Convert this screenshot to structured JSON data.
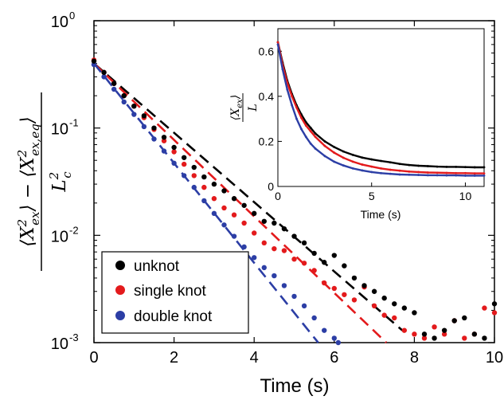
{
  "chart_data": [
    {
      "type": "scatter",
      "title": "",
      "xlabel": "Time (s)",
      "ylabel_parts": {
        "num_a": "⟨X",
        "num_a_sub": "ex",
        "num_a_sup": "2",
        "num_mid": "⟩ − ⟨X",
        "num_b_sub": "ex,eq",
        "num_b_sup": "2",
        "num_end": "⟩",
        "den": "L",
        "den_sub": "c",
        "den_sup": "2"
      },
      "xlim": [
        0,
        10
      ],
      "ylim": [
        0.001,
        1
      ],
      "y_scale": "log",
      "x_ticks": [
        0,
        2,
        4,
        6,
        8,
        10
      ],
      "x_tick_labels": [
        "0",
        "2",
        "4",
        "6",
        "8",
        "10"
      ],
      "y_ticks": [
        1,
        0.1,
        0.01,
        0.001
      ],
      "y_tick_labels": [
        {
          "base": "10",
          "exp": "0"
        },
        {
          "base": "10",
          "exp": "-1"
        },
        {
          "base": "10",
          "exp": "-2"
        },
        {
          "base": "10",
          "exp": "-3"
        }
      ],
      "grid": false,
      "legend_position": "bottom-left",
      "series": [
        {
          "name": "unknot",
          "color": "#000000",
          "marker": "dot",
          "x": [
            0.0,
            0.25,
            0.5,
            0.75,
            1.0,
            1.25,
            1.5,
            1.75,
            2.0,
            2.25,
            2.5,
            2.75,
            3.0,
            3.25,
            3.5,
            3.75,
            4.0,
            4.25,
            4.5,
            4.75,
            5.0,
            5.25,
            5.5,
            5.75,
            6.0,
            6.25,
            6.5,
            6.75,
            7.0,
            7.25,
            7.5,
            7.75,
            8.0,
            8.25,
            8.5,
            8.75,
            9.0,
            9.25,
            9.5,
            9.75,
            10.0
          ],
          "y": [
            0.42,
            0.33,
            0.26,
            0.2,
            0.16,
            0.13,
            0.1,
            0.082,
            0.066,
            0.053,
            0.043,
            0.035,
            0.03,
            0.026,
            0.022,
            0.019,
            0.016,
            0.0135,
            0.013,
            0.0115,
            0.0098,
            0.0085,
            0.0068,
            0.0056,
            0.0065,
            0.0052,
            0.004,
            0.0034,
            0.003,
            0.0026,
            0.0023,
            0.0021,
            0.0019,
            0.0012,
            0.0011,
            0.0013,
            0.0016,
            0.0017,
            0.0012,
            0.0011,
            0.0023
          ]
        },
        {
          "name": "single knot",
          "color": "#e31a1c",
          "marker": "dot",
          "x": [
            0.0,
            0.25,
            0.5,
            0.75,
            1.0,
            1.25,
            1.5,
            1.75,
            2.0,
            2.25,
            2.5,
            2.75,
            3.0,
            3.25,
            3.5,
            3.75,
            4.0,
            4.25,
            4.5,
            4.75,
            5.0,
            5.25,
            5.5,
            5.75,
            6.0,
            6.25,
            6.5,
            6.75,
            7.0,
            7.25,
            7.5,
            7.75,
            8.0,
            8.25,
            8.5,
            8.75,
            9.0,
            9.25,
            9.5,
            9.75,
            10.0
          ],
          "y": [
            0.43,
            0.33,
            0.26,
            0.2,
            0.16,
            0.125,
            0.097,
            0.076,
            0.06,
            0.046,
            0.036,
            0.028,
            0.022,
            0.018,
            0.0155,
            0.013,
            0.0105,
            0.0085,
            0.0075,
            0.0072,
            0.006,
            0.0055,
            0.0047,
            0.0036,
            0.0032,
            0.0028,
            0.0025,
            0.0033,
            0.0022,
            0.0018,
            0.0017,
            0.0013,
            0.0012,
            0.0011,
            0.0014,
            0.0012,
            0.0016,
            0.0011,
            0.0012,
            0.0021,
            0.0019
          ]
        },
        {
          "name": "double knot",
          "color": "#2c3ea5",
          "marker": "dot",
          "x": [
            0.0,
            0.25,
            0.5,
            0.75,
            1.0,
            1.25,
            1.5,
            1.75,
            2.0,
            2.25,
            2.5,
            2.75,
            3.0,
            3.25,
            3.5,
            3.75,
            4.0,
            4.25,
            4.5,
            4.75,
            5.0,
            5.25,
            5.5,
            5.75,
            6.0,
            6.1
          ],
          "y": [
            0.39,
            0.3,
            0.23,
            0.175,
            0.134,
            0.103,
            0.079,
            0.061,
            0.047,
            0.036,
            0.028,
            0.021,
            0.016,
            0.0125,
            0.0098,
            0.0078,
            0.0062,
            0.005,
            0.0042,
            0.0034,
            0.0027,
            0.0022,
            0.0017,
            0.0013,
            0.0011,
            0.001
          ]
        }
      ],
      "fit_lines": [
        {
          "color": "#000000",
          "style": "dashed",
          "x": [
            0.0,
            7.7
          ],
          "y": [
            0.4,
            0.0013
          ]
        },
        {
          "color": "#e31a1c",
          "style": "dashed",
          "x": [
            0.0,
            7.3
          ],
          "y": [
            0.4,
            0.001
          ]
        },
        {
          "color": "#2c3ea5",
          "style": "dashed",
          "x": [
            0.0,
            5.6
          ],
          "y": [
            0.4,
            0.001
          ]
        }
      ]
    },
    {
      "type": "scatter",
      "title": "",
      "xlabel": "Time (s)",
      "ylabel_parts": {
        "num": "⟨X",
        "num_sub": "ex",
        "num_end": "⟩",
        "den": "L"
      },
      "xlim": [
        0,
        11
      ],
      "ylim": [
        0,
        0.7
      ],
      "y_scale": "linear",
      "x_ticks": [
        0,
        5,
        10
      ],
      "x_tick_labels": [
        "0",
        "5",
        "10"
      ],
      "y_ticks": [
        0,
        0.2,
        0.4,
        0.6
      ],
      "y_tick_labels": [
        "0",
        "0.2",
        "0.4",
        "0.6"
      ],
      "grid": false,
      "series": [
        {
          "name": "unknot",
          "color": "#000000",
          "x": [
            0.0,
            0.25,
            0.5,
            0.75,
            1.0,
            1.25,
            1.5,
            1.75,
            2.0,
            2.5,
            3.0,
            3.5,
            4.0,
            4.5,
            5.0,
            5.5,
            6.0,
            6.5,
            7.0,
            7.5,
            8.0,
            8.5,
            9.0,
            9.5,
            10.0,
            10.5,
            11.0
          ],
          "y": [
            0.64,
            0.55,
            0.47,
            0.41,
            0.36,
            0.32,
            0.285,
            0.26,
            0.235,
            0.2,
            0.175,
            0.155,
            0.14,
            0.128,
            0.12,
            0.113,
            0.107,
            0.1,
            0.095,
            0.092,
            0.09,
            0.088,
            0.087,
            0.087,
            0.086,
            0.085,
            0.085
          ]
        },
        {
          "name": "single knot",
          "color": "#e31a1c",
          "x": [
            0.0,
            0.25,
            0.5,
            0.75,
            1.0,
            1.25,
            1.5,
            1.75,
            2.0,
            2.5,
            3.0,
            3.5,
            4.0,
            4.5,
            5.0,
            5.5,
            6.0,
            6.5,
            7.0,
            7.5,
            8.0,
            8.5,
            9.0,
            9.5,
            10.0,
            10.5,
            11.0
          ],
          "y": [
            0.64,
            0.54,
            0.46,
            0.4,
            0.35,
            0.305,
            0.27,
            0.245,
            0.22,
            0.18,
            0.15,
            0.127,
            0.11,
            0.097,
            0.088,
            0.08,
            0.074,
            0.07,
            0.066,
            0.064,
            0.062,
            0.061,
            0.06,
            0.059,
            0.059,
            0.058,
            0.058
          ]
        },
        {
          "name": "double knot",
          "color": "#2c3ea5",
          "x": [
            0.0,
            0.25,
            0.5,
            0.75,
            1.0,
            1.25,
            1.5,
            1.75,
            2.0,
            2.5,
            3.0,
            3.5,
            4.0,
            4.5,
            5.0,
            5.5,
            6.0,
            6.5,
            7.0,
            7.5,
            8.0,
            8.5,
            9.0,
            9.5,
            10.0,
            10.5,
            11.0
          ],
          "y": [
            0.63,
            0.52,
            0.43,
            0.36,
            0.3,
            0.255,
            0.22,
            0.19,
            0.168,
            0.135,
            0.11,
            0.093,
            0.08,
            0.071,
            0.064,
            0.059,
            0.056,
            0.053,
            0.052,
            0.051,
            0.05,
            0.05,
            0.049,
            0.049,
            0.048,
            0.048,
            0.048
          ]
        }
      ]
    }
  ]
}
